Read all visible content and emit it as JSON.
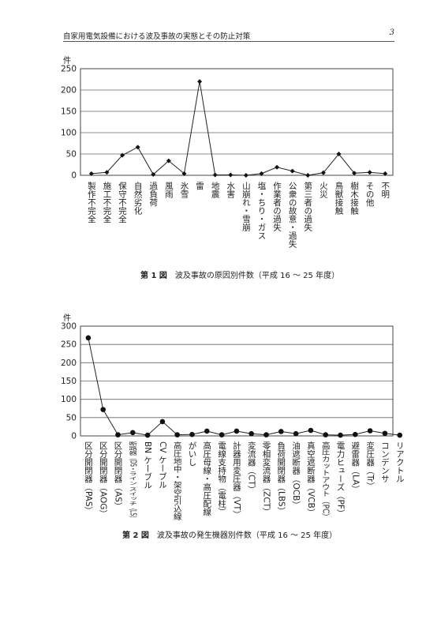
{
  "header": {
    "title": "自家用電気設備における波及事故の実態とその防止対策",
    "page_number": "3"
  },
  "chart_data": [
    {
      "type": "line",
      "figure_label": "第 1 図",
      "caption": "波及事故の原因別件数（平成 16 ～ 25 年度）",
      "ylabel": "件",
      "ylim": [
        0,
        250
      ],
      "yticks": [
        0,
        50,
        100,
        150,
        200,
        250
      ],
      "grid": true,
      "marker": "diamond",
      "categories": [
        "製作不完全",
        "施工不完全",
        "保守不完全",
        "自然劣化",
        "過負荷",
        "風雨",
        "氷雪",
        "雷",
        "地震",
        "水害",
        "山崩れ・雪崩",
        "塩・ちり・ガス",
        "作業者の過失",
        "公衆の故意・過失",
        "第三者の過失",
        "火災",
        "鳥獣接触",
        "樹木接触",
        "その他",
        "不明"
      ],
      "values": [
        4,
        7,
        47,
        66,
        2,
        34,
        4,
        220,
        1,
        1,
        0,
        4,
        19,
        10,
        0,
        6,
        50,
        5,
        7,
        4
      ]
    },
    {
      "type": "line",
      "figure_label": "第 2 図",
      "caption": "波及事故の発生機器別件数（平成 16 ～ 25 年度）",
      "ylabel": "件",
      "ylim": [
        0,
        300
      ],
      "yticks": [
        0,
        50,
        100,
        150,
        200,
        250,
        300
      ],
      "grid": true,
      "marker": "circle",
      "categories": [
        "区分開閉器（PAS）",
        "区分開閉器（AOG）",
        "区分開閉器（AS）",
        "断路器（DS・ライン スイッチ（LS）",
        "BN ケーブル",
        "CV ケーブル",
        "高圧地中・架空引込線",
        "がいし",
        "高圧母線・高圧配線",
        "電線支持物（電柱）",
        "計器用変圧器（VT）",
        "変流器（CT）",
        "零相変流器（ZCT）",
        "負荷開閉器（LBS）",
        "油遮断器（OCB）",
        "真空遮断器（VCB）",
        "高圧カットアウト（PC）",
        "電力ヒューズ（PF）",
        "避雷器（LA）",
        "変圧器（Tr）",
        "コンデンサ",
        "リアクトル"
      ],
      "values": [
        268,
        72,
        3,
        9,
        2,
        39,
        3,
        4,
        13,
        3,
        13,
        6,
        3,
        12,
        6,
        15,
        3,
        2,
        4,
        14,
        7,
        2
      ]
    }
  ]
}
